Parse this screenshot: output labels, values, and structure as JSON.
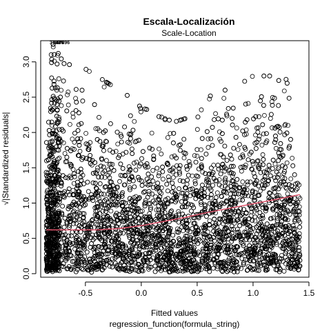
{
  "chart_data": {
    "type": "scatter",
    "title": "Escala-Localización",
    "subtitle": "Scale-Location",
    "xlabel": "Fitted values",
    "xlabel_sub": "regression_function(formula_string)",
    "ylabel": "√|Standardized residuals|",
    "xlim": [
      -0.9,
      1.5
    ],
    "ylim": [
      -0.05,
      3.3
    ],
    "x_ticks": [
      -0.5,
      0.0,
      0.5,
      1.0,
      1.5
    ],
    "x_tick_labels": [
      "-0.5",
      "0.0",
      "0.5",
      "1.0",
      "1.5"
    ],
    "y_ticks": [
      0.0,
      0.5,
      1.0,
      1.5,
      2.0,
      2.5,
      3.0
    ],
    "y_tick_labels": [
      "0.0",
      "0.5",
      "1.0",
      "1.5",
      "2.0",
      "2.5",
      "3.0"
    ],
    "grid": false,
    "series": [
      {
        "marker": "open-circle",
        "color": "#000000",
        "fitted_range": [
          -0.85,
          1.42
        ],
        "residual_range": [
          0.0,
          3.28
        ],
        "upper_envelope": {
          "x": [
            -0.85,
            -0.8,
            -0.7,
            -0.6,
            -0.5,
            -0.4,
            -0.3,
            -0.2,
            -0.1,
            0.0,
            0.1,
            0.2,
            0.3,
            0.4,
            0.5,
            0.6,
            0.7,
            0.8,
            0.9,
            1.0,
            1.1,
            1.2,
            1.3,
            1.4
          ],
          "y": [
            1.8,
            3.28,
            3.0,
            2.95,
            2.9,
            2.8,
            2.7,
            2.6,
            2.5,
            2.35,
            2.3,
            2.2,
            2.15,
            2.2,
            2.4,
            2.5,
            2.6,
            2.6,
            2.7,
            2.8,
            2.8,
            2.8,
            2.75,
            1.7
          ]
        }
      },
      {
        "name": "smoother",
        "type": "line",
        "color": "#df536b",
        "x": [
          -0.85,
          -0.6,
          -0.4,
          -0.2,
          0.0,
          0.2,
          0.4,
          0.6,
          0.8,
          1.0,
          1.2,
          1.42
        ],
        "y": [
          0.62,
          0.62,
          0.62,
          0.64,
          0.68,
          0.74,
          0.8,
          0.87,
          0.93,
          0.99,
          1.05,
          1.12
        ]
      }
    ],
    "annotations": [
      {
        "text": "3753",
        "x": -0.82,
        "y": 3.28
      },
      {
        "text": "5436",
        "x": -0.79,
        "y": 3.28
      },
      {
        "text": "57896",
        "x": -0.76,
        "y": 3.28
      }
    ]
  }
}
